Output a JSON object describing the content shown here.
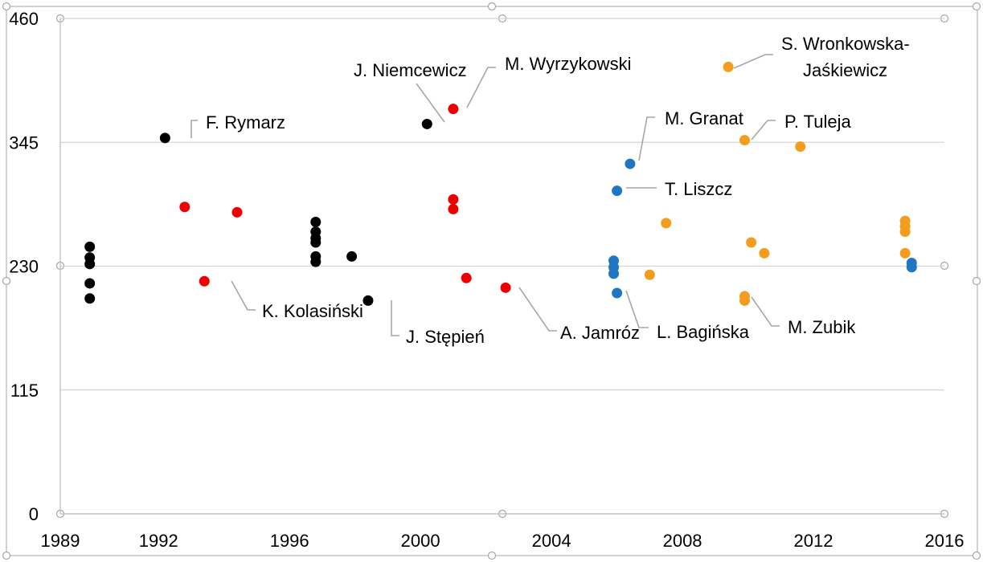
{
  "chart_data": {
    "type": "scatter",
    "xlim": [
      1989,
      2016
    ],
    "ylim": [
      0,
      460
    ],
    "x_ticks": [
      "1989",
      "1992",
      "1996",
      "2000",
      "2004",
      "2008",
      "2012",
      "2016"
    ],
    "y_ticks": [
      "0",
      "115",
      "230",
      "345",
      "460"
    ],
    "grid": true,
    "legend": "none",
    "series": [
      {
        "color": "#000000",
        "points": [
          {
            "x": 1989.9,
            "y": 248
          },
          {
            "x": 1989.9,
            "y": 238
          },
          {
            "x": 1989.9,
            "y": 232
          },
          {
            "x": 1989.9,
            "y": 214
          },
          {
            "x": 1989.9,
            "y": 200
          },
          {
            "x": 1992.2,
            "y": 349
          },
          {
            "x": 1996.8,
            "y": 271
          },
          {
            "x": 1996.8,
            "y": 262
          },
          {
            "x": 1996.8,
            "y": 256
          },
          {
            "x": 1996.8,
            "y": 252
          },
          {
            "x": 1996.8,
            "y": 239
          },
          {
            "x": 1996.8,
            "y": 234
          },
          {
            "x": 1997.9,
            "y": 239
          },
          {
            "x": 1998.4,
            "y": 198
          },
          {
            "x": 2000.2,
            "y": 362
          }
        ]
      },
      {
        "color": "#ee0000",
        "points": [
          {
            "x": 1992.8,
            "y": 285
          },
          {
            "x": 1993.4,
            "y": 216
          },
          {
            "x": 1994.4,
            "y": 280
          },
          {
            "x": 2001.0,
            "y": 376
          },
          {
            "x": 2001.0,
            "y": 292
          },
          {
            "x": 2001.0,
            "y": 283
          },
          {
            "x": 2001.4,
            "y": 219
          },
          {
            "x": 2002.6,
            "y": 210
          }
        ]
      },
      {
        "color": "#1f77c4",
        "points": [
          {
            "x": 2005.9,
            "y": 235
          },
          {
            "x": 2005.9,
            "y": 229
          },
          {
            "x": 2005.9,
            "y": 223
          },
          {
            "x": 2006.0,
            "y": 205
          },
          {
            "x": 2006.0,
            "y": 300
          },
          {
            "x": 2006.4,
            "y": 325
          },
          {
            "x": 2015.0,
            "y": 233
          },
          {
            "x": 2015.0,
            "y": 229
          }
        ]
      },
      {
        "color": "#f39c1e",
        "points": [
          {
            "x": 2007.0,
            "y": 222
          },
          {
            "x": 2007.5,
            "y": 270
          },
          {
            "x": 2009.4,
            "y": 415
          },
          {
            "x": 2009.9,
            "y": 347
          },
          {
            "x": 2009.9,
            "y": 202
          },
          {
            "x": 2009.9,
            "y": 198
          },
          {
            "x": 2010.1,
            "y": 252
          },
          {
            "x": 2010.5,
            "y": 242
          },
          {
            "x": 2011.6,
            "y": 341
          },
          {
            "x": 2014.8,
            "y": 272
          },
          {
            "x": 2014.8,
            "y": 267
          },
          {
            "x": 2014.8,
            "y": 262
          },
          {
            "x": 2014.8,
            "y": 242
          }
        ]
      }
    ],
    "annotations": [
      {
        "lines": [
          "F. Rymarz"
        ],
        "x": 1992.2,
        "y": 349
      },
      {
        "lines": [
          "K. Kolasiński"
        ],
        "x": 1993.4,
        "y": 216
      },
      {
        "lines": [
          "J. Stępień"
        ],
        "x": 1998.4,
        "y": 198
      },
      {
        "lines": [
          "J. Niemcewicz"
        ],
        "x": 2000.2,
        "y": 362
      },
      {
        "lines": [
          "M. Wyrzykowski"
        ],
        "x": 2001.0,
        "y": 376
      },
      {
        "lines": [
          "A. Jamróz"
        ],
        "x": 2002.6,
        "y": 210
      },
      {
        "lines": [
          "M. Granat"
        ],
        "x": 2006.4,
        "y": 325
      },
      {
        "lines": [
          "T. Liszcz"
        ],
        "x": 2006.0,
        "y": 300
      },
      {
        "lines": [
          "L. Bagińska"
        ],
        "x": 2006.0,
        "y": 205
      },
      {
        "lines": [
          "S. Wronkowska-",
          "Jaśkiewicz"
        ],
        "x": 2009.4,
        "y": 415
      },
      {
        "lines": [
          "P. Tuleja"
        ],
        "x": 2009.9,
        "y": 347
      },
      {
        "lines": [
          "M. Zubik"
        ],
        "x": 2009.9,
        "y": 198
      }
    ]
  }
}
